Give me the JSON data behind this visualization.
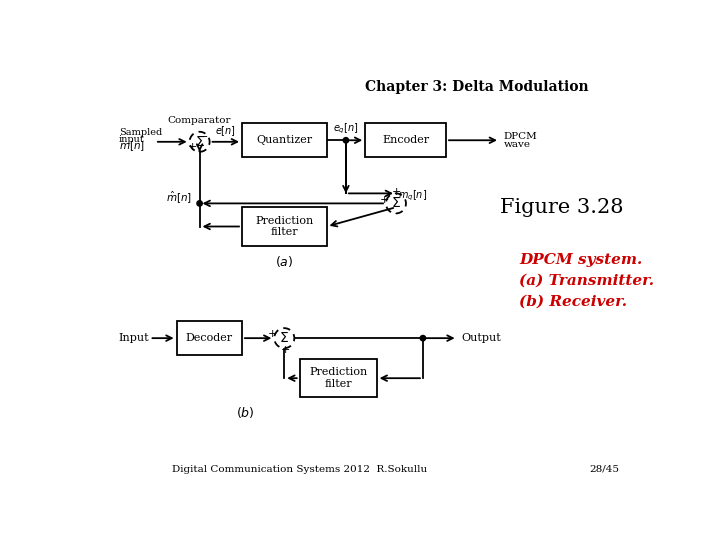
{
  "title": "Chapter 3: Delta Modulation",
  "figure_label": "Figure 3.28",
  "caption": "DPCM system.\n(a) Transmitter.\n(b) Receiver.",
  "footer_left": "Digital Communication Systems 2012  R.Sokullu",
  "footer_right": "28/45",
  "background_color": "#ffffff",
  "title_fontsize": 10,
  "figure_label_fontsize": 15,
  "caption_color": "#cc0000",
  "caption_fontsize": 11
}
